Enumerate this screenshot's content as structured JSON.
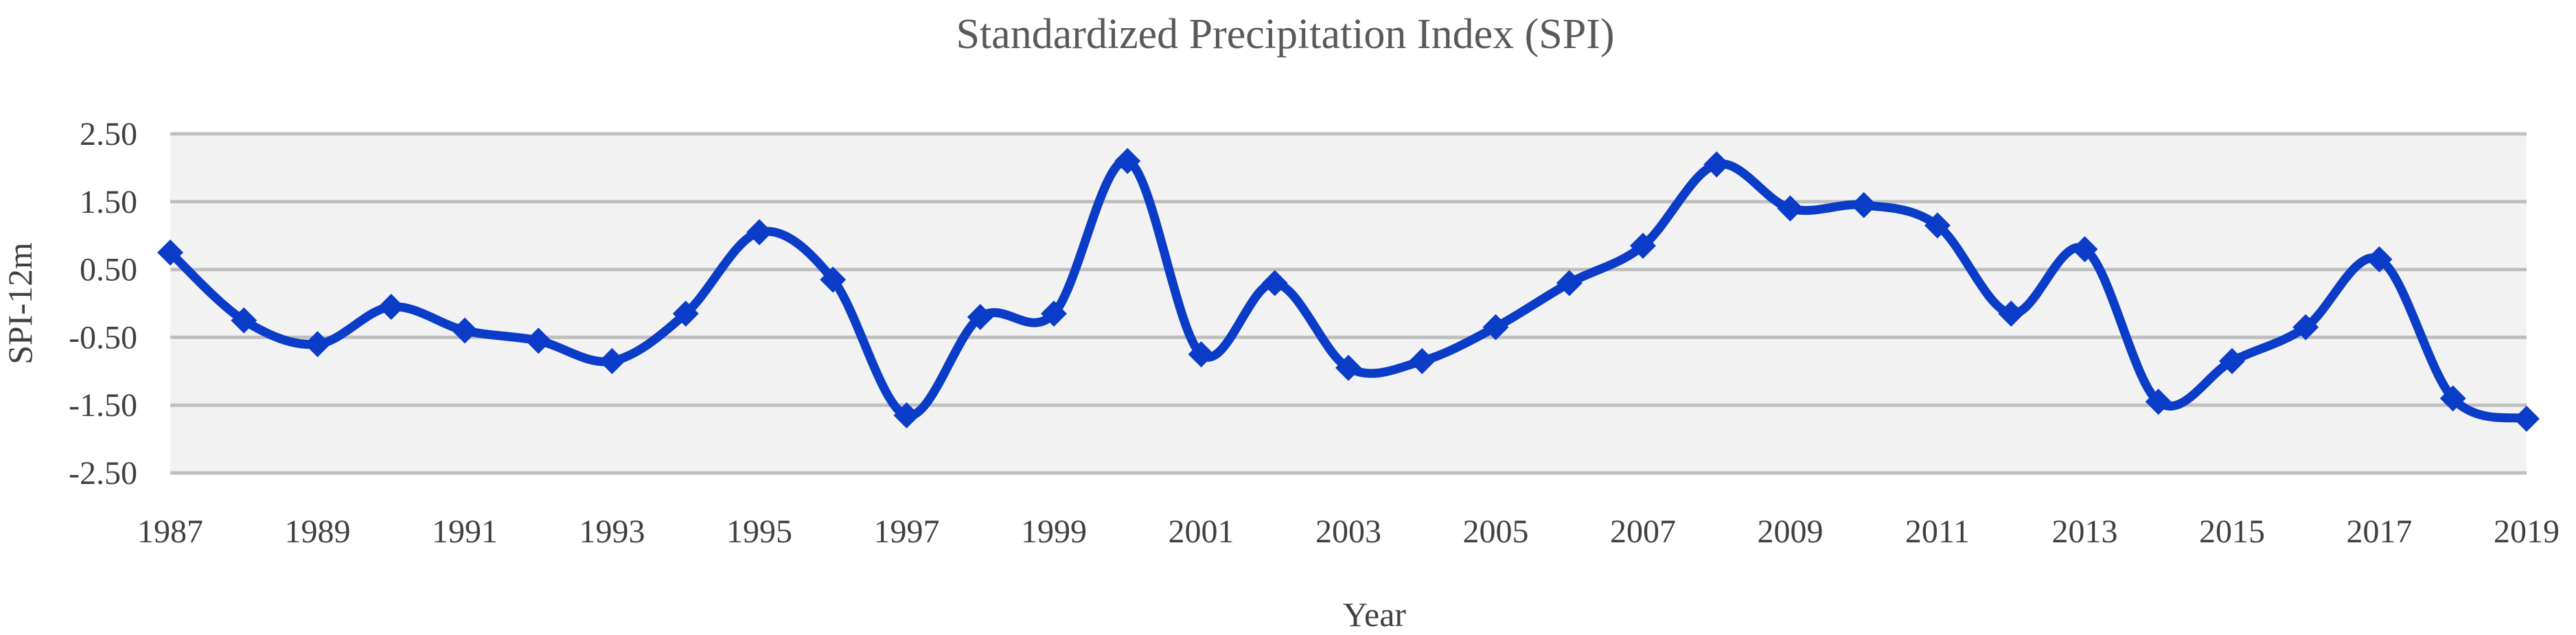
{
  "chart_data": {
    "type": "line",
    "title": "Standardized Precipitation Index (SPI)",
    "xlabel": "Year",
    "ylabel": "SPI-12m",
    "ylim": [
      -2.5,
      2.5
    ],
    "yticks": [
      2.5,
      1.5,
      0.5,
      -0.5,
      -1.5,
      -2.5
    ],
    "ytick_labels": [
      "2.50",
      "1.50",
      "0.50",
      "-0.50",
      "-1.50",
      "-2.50"
    ],
    "xlim": [
      1987,
      2019
    ],
    "xticks": [
      1987,
      1989,
      1991,
      1993,
      1995,
      1997,
      1999,
      2001,
      2003,
      2005,
      2007,
      2009,
      2011,
      2013,
      2015,
      2017,
      2019
    ],
    "grid": true,
    "smooth": true,
    "colors": {
      "line": "#0a3cc8",
      "plot_bg": "#f2f2f2",
      "grid": "#bfbfbf"
    },
    "series": [
      {
        "name": "SPI-12m",
        "x": [
          1987,
          1988,
          1989,
          1990,
          1991,
          1992,
          1993,
          1994,
          1995,
          1996,
          1997,
          1998,
          1999,
          2000,
          2001,
          2002,
          2003,
          2004,
          2005,
          2006,
          2007,
          2008,
          2009,
          2010,
          2011,
          2012,
          2013,
          2014,
          2015,
          2016,
          2017,
          2018,
          2019
        ],
        "values": [
          0.75,
          -0.25,
          -0.6,
          -0.05,
          -0.4,
          -0.55,
          -0.85,
          -0.15,
          1.05,
          0.35,
          -1.65,
          -0.2,
          -0.15,
          2.1,
          -0.75,
          0.3,
          -0.95,
          -0.85,
          -0.35,
          0.3,
          0.85,
          2.05,
          1.4,
          1.45,
          1.15,
          -0.15,
          0.8,
          -1.45,
          -0.85,
          -0.35,
          0.65,
          -1.4,
          -1.7
        ]
      }
    ]
  }
}
